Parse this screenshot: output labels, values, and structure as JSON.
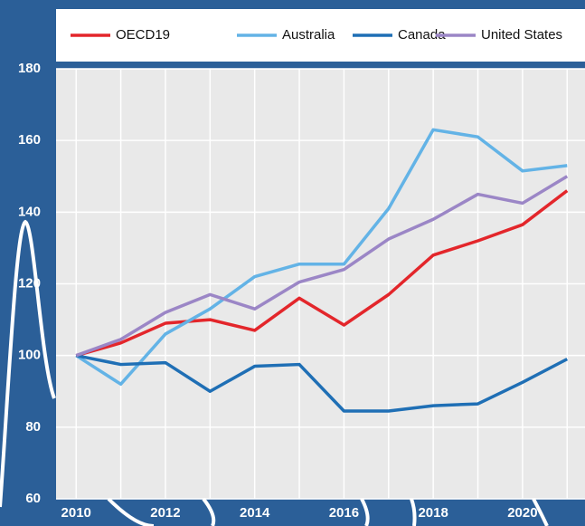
{
  "chart_data": {
    "type": "line",
    "x": [
      2010,
      2011,
      2012,
      2013,
      2014,
      2015,
      2016,
      2017,
      2018,
      2019,
      2020,
      2021
    ],
    "series": [
      {
        "name": "OECD19",
        "color": "#e3262b",
        "values": [
          100,
          103.5,
          109,
          110,
          107,
          116,
          108.5,
          117,
          128,
          132,
          136.5,
          146
        ]
      },
      {
        "name": "Australia",
        "color": "#63b3e6",
        "values": [
          100,
          92,
          106,
          113,
          122,
          125.5,
          125.5,
          141,
          163,
          161,
          151.5,
          153
        ]
      },
      {
        "name": "Canada",
        "color": "#1f6fb5",
        "values": [
          100,
          97.5,
          98,
          90,
          97,
          97.5,
          84.5,
          84.5,
          86,
          86.5,
          92.5,
          99
        ]
      },
      {
        "name": "United States",
        "color": "#9b86c6",
        "values": [
          100,
          104.5,
          112,
          117,
          113,
          120.5,
          124,
          132.5,
          138,
          145,
          142.5,
          150
        ]
      }
    ],
    "xlim": [
      2009.55,
      2021.4
    ],
    "xticks": [
      2010,
      2012,
      2014,
      2016,
      2018,
      2020
    ],
    "ylim": [
      60,
      180
    ],
    "yticks": [
      60,
      80,
      100,
      120,
      140,
      160,
      180
    ],
    "grid": true,
    "legend": "top"
  }
}
